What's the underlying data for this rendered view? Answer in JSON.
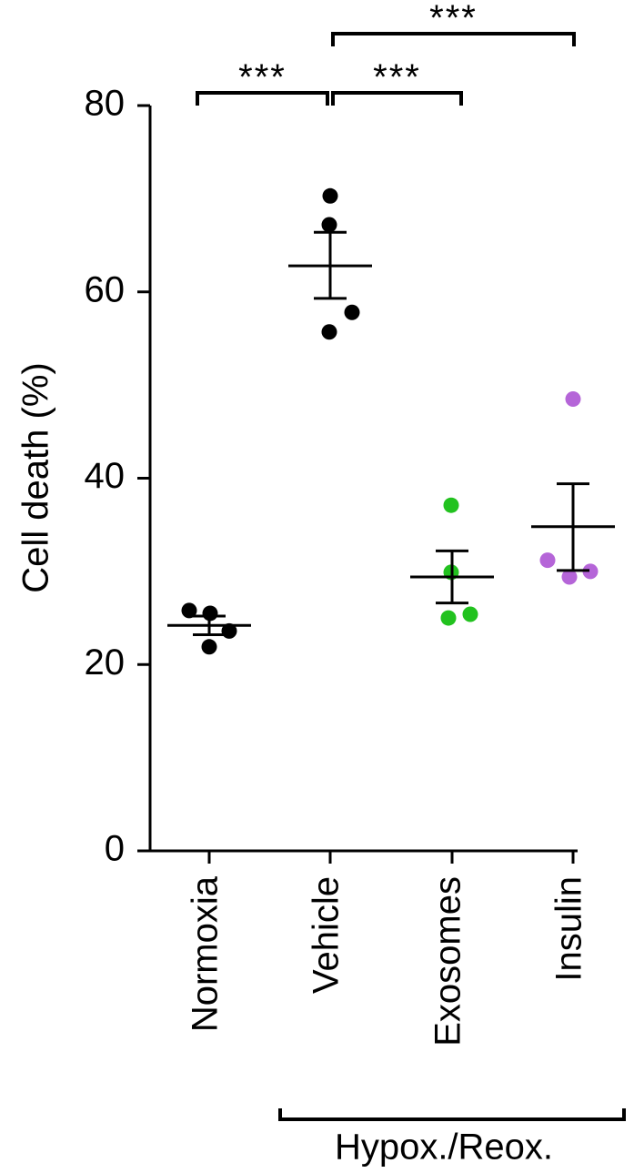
{
  "chart_data": {
    "type": "scatter",
    "title": "",
    "xlabel": "",
    "ylabel": "Cell death (%)",
    "ylim": [
      0,
      80
    ],
    "yticks": [
      0,
      20,
      40,
      60,
      80
    ],
    "categories": [
      "Normoxia",
      "Vehicle",
      "Exosomes",
      "Insulin"
    ],
    "group_label": "Hypox./Reox.",
    "group_members": [
      "Vehicle",
      "Exosomes",
      "Insulin"
    ],
    "series": [
      {
        "category": "Normoxia",
        "color": "#000000",
        "points": [
          25.8,
          25.5,
          23.6,
          21.9
        ],
        "mean": 24.2,
        "sem_low": 23.2,
        "sem_high": 25.2
      },
      {
        "category": "Vehicle",
        "color": "#000000",
        "points": [
          70.3,
          67.2,
          57.8,
          55.7
        ],
        "mean": 62.8,
        "sem_low": 59.3,
        "sem_high": 66.4
      },
      {
        "category": "Exosomes",
        "color": "#22c21f",
        "points": [
          37.1,
          29.9,
          25.4,
          25.0
        ],
        "mean": 29.4,
        "sem_low": 26.6,
        "sem_high": 32.2
      },
      {
        "category": "Insulin",
        "color": "#b565d8",
        "points": [
          48.5,
          31.2,
          30.0,
          29.4
        ],
        "mean": 34.8,
        "sem_low": 30.1,
        "sem_high": 39.4
      }
    ],
    "significance": [
      {
        "from": "Normoxia",
        "to": "Vehicle",
        "label": "***"
      },
      {
        "from": "Vehicle",
        "to": "Exosomes",
        "label": "***"
      },
      {
        "from": "Vehicle",
        "to": "Insulin",
        "label": "***"
      }
    ]
  }
}
